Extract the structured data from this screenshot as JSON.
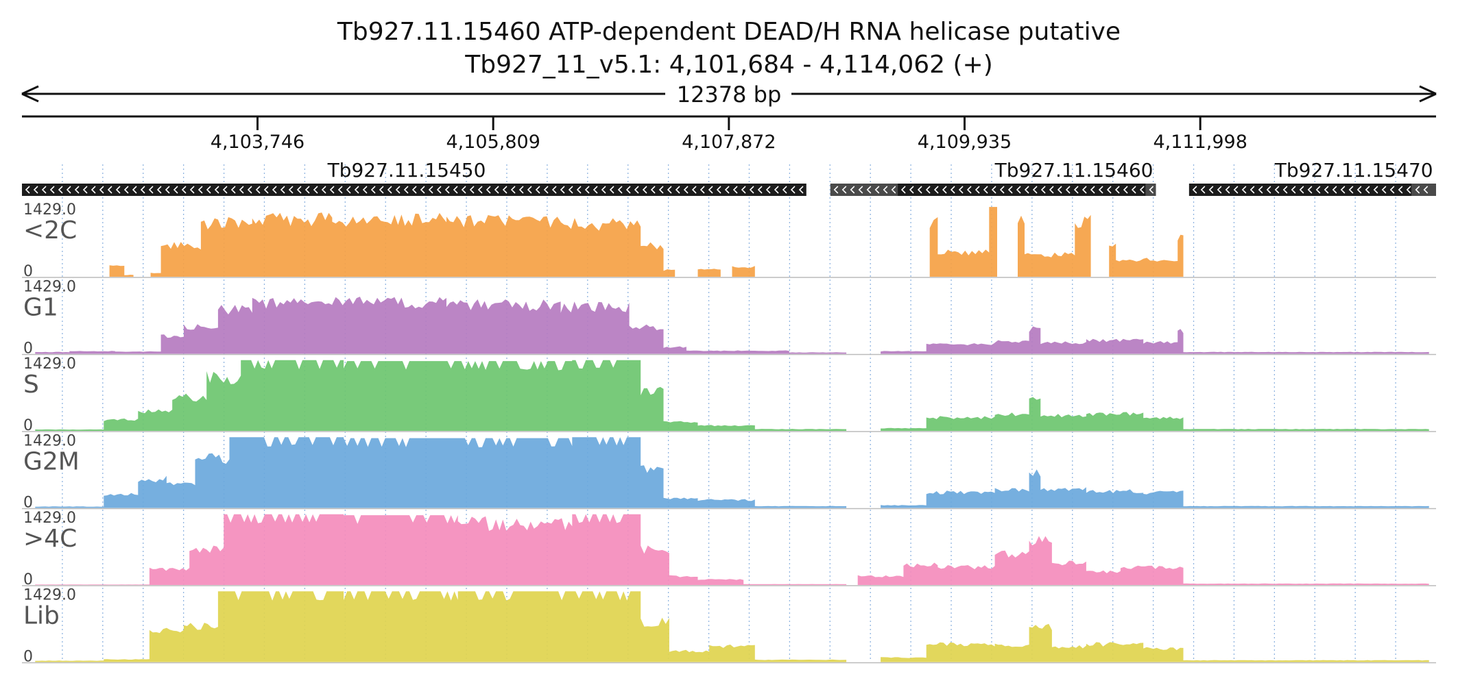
{
  "header": {
    "title": "Tb927.11.15460  ATP-dependent DEAD/H RNA helicase  putative",
    "subtitle": "Tb927_11_v5.1: 4,101,684 - 4,114,062 (+)",
    "span_label": "12378 bp"
  },
  "chart_data": {
    "type": "area",
    "region": {
      "chrom": "Tb927_11_v5.1",
      "start": 4101684,
      "end": 4114062,
      "strand": "+"
    },
    "axis_ticks": [
      {
        "pos": 4103746,
        "label": "4,103,746"
      },
      {
        "pos": 4105809,
        "label": "4,105,809"
      },
      {
        "pos": 4107872,
        "label": "4,107,872"
      },
      {
        "pos": 4109935,
        "label": "4,109,935"
      },
      {
        "pos": 4111998,
        "label": "4,111,998"
      }
    ],
    "genes": [
      {
        "name": "Tb927.11.15450",
        "start": 4101684,
        "end": 4108550,
        "strand": "-",
        "label_pos": 4107000
      },
      {
        "name": "",
        "start": 4108760,
        "end": 4109350,
        "strand": "-",
        "label_pos": null
      },
      {
        "name": "Tb927.11.15460",
        "start": 4109350,
        "end": 4111520,
        "strand": "-",
        "label_pos": 4110200
      },
      {
        "name": "",
        "start": 4111520,
        "end": 4111610,
        "strand": "-",
        "label_pos": null
      },
      {
        "name": "Tb927.11.15470",
        "start": 4111900,
        "end": 4113850,
        "strand": "-",
        "label_pos": 4112650
      },
      {
        "name": "",
        "start": 4113850,
        "end": 4114062,
        "strand": "-",
        "label_pos": null
      }
    ],
    "track_ymax": "1429.0",
    "track_ymin": "0",
    "tracks": [
      {
        "name": "<2C",
        "color": "#f5a144",
        "segments": [
          [
            4102450,
            4102580,
            230
          ],
          [
            4102580,
            4102660,
            40
          ],
          [
            4102810,
            4102900,
            80
          ],
          [
            4102900,
            4103250,
            700
          ],
          [
            4103250,
            4103700,
            1200
          ],
          [
            4103700,
            4104400,
            1300
          ],
          [
            4104400,
            4105400,
            1280
          ],
          [
            4105400,
            4106400,
            1250
          ],
          [
            4106400,
            4107100,
            1180
          ],
          [
            4107100,
            4107300,
            700
          ],
          [
            4107300,
            4107400,
            150
          ],
          [
            4107600,
            4107800,
            180
          ],
          [
            4107900,
            4108100,
            220
          ],
          [
            4109630,
            4109700,
            1250
          ],
          [
            4109700,
            4110150,
            550
          ],
          [
            4110150,
            4110220,
            1400
          ],
          [
            4110400,
            4110460,
            1350
          ],
          [
            4110460,
            4110900,
            500
          ],
          [
            4110900,
            4111040,
            1250
          ],
          [
            4111040,
            4111200,
            0
          ],
          [
            4111200,
            4111260,
            750
          ],
          [
            4111260,
            4111800,
            380
          ],
          [
            4111800,
            4111850,
            850
          ]
        ]
      },
      {
        "name": "G1",
        "color": "#b57bc0",
        "segments": [
          [
            4101800,
            4102100,
            40
          ],
          [
            4102100,
            4102500,
            60
          ],
          [
            4102500,
            4102900,
            50
          ],
          [
            4102900,
            4103100,
            400
          ],
          [
            4103100,
            4103400,
            600
          ],
          [
            4103400,
            4103700,
            1000
          ],
          [
            4103700,
            4104400,
            1150
          ],
          [
            4104400,
            4105400,
            1150
          ],
          [
            4105400,
            4106400,
            1100
          ],
          [
            4106400,
            4107000,
            1050
          ],
          [
            4107000,
            4107300,
            600
          ],
          [
            4107300,
            4107500,
            150
          ],
          [
            4107500,
            4108400,
            70
          ],
          [
            4108400,
            4108900,
            30
          ],
          [
            4109200,
            4109600,
            60
          ],
          [
            4109600,
            4110200,
            220
          ],
          [
            4110200,
            4110500,
            280
          ],
          [
            4110500,
            4110600,
            550
          ],
          [
            4110600,
            4111000,
            250
          ],
          [
            4111000,
            4111500,
            300
          ],
          [
            4111500,
            4111800,
            260
          ],
          [
            4111800,
            4111850,
            500
          ],
          [
            4111850,
            4114000,
            40
          ]
        ]
      },
      {
        "name": "S",
        "color": "#6cc56f",
        "segments": [
          [
            4101800,
            4102400,
            30
          ],
          [
            4102400,
            4102700,
            250
          ],
          [
            4102700,
            4103000,
            450
          ],
          [
            4103000,
            4103300,
            750
          ],
          [
            4103300,
            4103600,
            1200
          ],
          [
            4103600,
            4104500,
            1420
          ],
          [
            4104500,
            4105500,
            1400
          ],
          [
            4105500,
            4106500,
            1400
          ],
          [
            4106500,
            4107100,
            1420
          ],
          [
            4107100,
            4107300,
            900
          ],
          [
            4107300,
            4107600,
            200
          ],
          [
            4107600,
            4108100,
            120
          ],
          [
            4108100,
            4108900,
            40
          ],
          [
            4109200,
            4109600,
            60
          ],
          [
            4109600,
            4110200,
            300
          ],
          [
            4110200,
            4110500,
            380
          ],
          [
            4110500,
            4110600,
            700
          ],
          [
            4110600,
            4111000,
            340
          ],
          [
            4111000,
            4111500,
            380
          ],
          [
            4111500,
            4111850,
            300
          ],
          [
            4111850,
            4114000,
            40
          ]
        ]
      },
      {
        "name": "G2M",
        "color": "#6aa8dc",
        "segments": [
          [
            4101800,
            4102400,
            30
          ],
          [
            4102400,
            4102700,
            300
          ],
          [
            4102700,
            4102950,
            650
          ],
          [
            4102950,
            4103200,
            550
          ],
          [
            4103200,
            4103500,
            1100
          ],
          [
            4103500,
            4104500,
            1420
          ],
          [
            4104500,
            4105500,
            1400
          ],
          [
            4105500,
            4106500,
            1400
          ],
          [
            4106500,
            4107100,
            1420
          ],
          [
            4107100,
            4107300,
            900
          ],
          [
            4107300,
            4107600,
            220
          ],
          [
            4107600,
            4108100,
            180
          ],
          [
            4108100,
            4108900,
            40
          ],
          [
            4109200,
            4109600,
            60
          ],
          [
            4109600,
            4110200,
            350
          ],
          [
            4110200,
            4110500,
            400
          ],
          [
            4110500,
            4110600,
            800
          ],
          [
            4110600,
            4111000,
            420
          ],
          [
            4111000,
            4111500,
            380
          ],
          [
            4111500,
            4111850,
            350
          ],
          [
            4111850,
            4114000,
            40
          ]
        ]
      },
      {
        "name": ">4C",
        "color": "#f48cbc",
        "segments": [
          [
            4101800,
            4102800,
            10
          ],
          [
            4102800,
            4103150,
            350
          ],
          [
            4103150,
            4103450,
            800
          ],
          [
            4103450,
            4104500,
            1420
          ],
          [
            4104500,
            4105500,
            1400
          ],
          [
            4105500,
            4106500,
            1380
          ],
          [
            4106500,
            4107100,
            1420
          ],
          [
            4107100,
            4107350,
            800
          ],
          [
            4107350,
            4107600,
            200
          ],
          [
            4107600,
            4108000,
            120
          ],
          [
            4108000,
            4108900,
            20
          ],
          [
            4109000,
            4109400,
            200
          ],
          [
            4109400,
            4109700,
            450
          ],
          [
            4109700,
            4110200,
            400
          ],
          [
            4110200,
            4110500,
            700
          ],
          [
            4110500,
            4110700,
            1000
          ],
          [
            4110700,
            4111000,
            500
          ],
          [
            4111000,
            4111300,
            300
          ],
          [
            4111300,
            4111850,
            400
          ],
          [
            4111850,
            4114000,
            30
          ]
        ]
      },
      {
        "name": "Lib",
        "color": "#e0d44e",
        "segments": [
          [
            4101800,
            4102400,
            30
          ],
          [
            4102400,
            4102800,
            60
          ],
          [
            4102800,
            4103100,
            700
          ],
          [
            4103100,
            4103400,
            800
          ],
          [
            4103400,
            4104500,
            1420
          ],
          [
            4104500,
            4105500,
            1420
          ],
          [
            4105500,
            4106500,
            1420
          ],
          [
            4106500,
            4107100,
            1420
          ],
          [
            4107100,
            4107350,
            900
          ],
          [
            4107350,
            4107700,
            250
          ],
          [
            4107700,
            4108100,
            350
          ],
          [
            4108100,
            4108900,
            50
          ],
          [
            4109200,
            4109600,
            100
          ],
          [
            4109600,
            4110200,
            400
          ],
          [
            4110200,
            4110500,
            380
          ],
          [
            4110500,
            4110700,
            800
          ],
          [
            4110700,
            4111000,
            350
          ],
          [
            4111000,
            4111500,
            400
          ],
          [
            4111500,
            4111850,
            300
          ],
          [
            4111850,
            4114000,
            40
          ]
        ]
      }
    ]
  }
}
